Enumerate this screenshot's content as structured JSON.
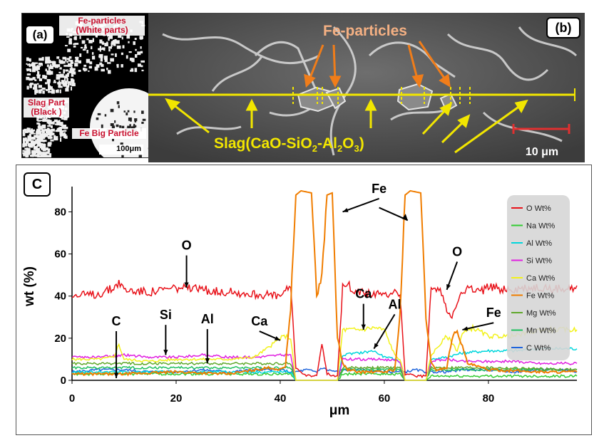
{
  "panel_a": {
    "tag": "(a)",
    "fe_particles_title": "Fe-particles",
    "fe_particles_sub": "(White parts)",
    "slag_title": "Slag Part",
    "slag_sub": "(Black )",
    "fe_big": "Fe Big Particle",
    "scale": "100μm"
  },
  "panel_b": {
    "tag": "(b)",
    "fe_particles": "Fe-particles",
    "slag_label": "Slag(CaO-SiO",
    "slag_sub2": "2",
    "slag_mid": "-Al",
    "slag_sub3a": "2",
    "slag_mid2": "O",
    "slag_sub3b": "3",
    "slag_end": ")",
    "scale": "10 μm"
  },
  "panel_c": {
    "tag": "C"
  },
  "chart_data": {
    "type": "line",
    "xlabel": "μm",
    "ylabel": "wt (%)",
    "xlim": [
      0,
      97
    ],
    "ylim": [
      0,
      92
    ],
    "xticks": [
      0,
      20,
      40,
      60,
      80
    ],
    "yticks": [
      0,
      20,
      40,
      60,
      80
    ],
    "legend_position": "right",
    "colors": {
      "O": "#e8121a",
      "Na": "#33cc33",
      "Al": "#00d6dc",
      "Si": "#e020e0",
      "Ca": "#f2f21a",
      "Fe": "#f07d00",
      "Mg": "#5fa82a",
      "Mn": "#20c060",
      "C": "#1e64dc"
    },
    "series": [
      {
        "name": "O Wt%",
        "x": [
          0,
          5,
          8,
          9,
          10,
          15,
          20,
          25,
          30,
          35,
          40,
          41,
          42,
          43,
          45,
          47,
          48,
          49,
          51,
          52,
          53,
          55,
          58,
          60,
          62,
          63,
          64,
          66,
          68,
          69,
          70,
          71,
          72,
          73,
          74,
          76,
          78,
          80,
          85,
          90,
          95,
          97
        ],
        "y": [
          40,
          41,
          44,
          47,
          43,
          42,
          44,
          43,
          42,
          41,
          40,
          42,
          45,
          6,
          2,
          2,
          18,
          3,
          2,
          44,
          45,
          42,
          41,
          40,
          43,
          41,
          3,
          2,
          2,
          44,
          43,
          42,
          33,
          31,
          38,
          44,
          42,
          44,
          43,
          44,
          43,
          45
        ]
      },
      {
        "name": "Na Wt%",
        "x": [
          0,
          20,
          40,
          42,
          43,
          51,
          52,
          63,
          64,
          68,
          69,
          97
        ],
        "y": [
          3,
          3,
          3,
          3,
          0,
          0,
          3,
          3,
          0,
          0,
          2,
          2
        ]
      },
      {
        "name": "Al Wt%",
        "x": [
          0,
          10,
          20,
          30,
          40,
          42,
          43,
          51,
          52,
          55,
          58,
          60,
          62,
          63,
          64,
          68,
          69,
          72,
          75,
          80,
          85,
          90,
          95,
          97
        ],
        "y": [
          4,
          4,
          4,
          4,
          4,
          4,
          0,
          0,
          12,
          13,
          14,
          11,
          10,
          9,
          0,
          0,
          10,
          11,
          13,
          14,
          14,
          15,
          15,
          15
        ]
      },
      {
        "name": "Si Wt%",
        "x": [
          0,
          5,
          10,
          15,
          20,
          25,
          30,
          35,
          40,
          42,
          43,
          51,
          52,
          55,
          60,
          63,
          64,
          68,
          69,
          72,
          75,
          80,
          85,
          90,
          95,
          97
        ],
        "y": [
          11,
          11,
          12,
          11,
          11,
          12,
          11,
          11,
          12,
          12,
          0,
          0,
          10,
          10,
          10,
          9,
          0,
          0,
          9,
          10,
          9,
          9,
          9,
          8,
          8,
          8
        ]
      },
      {
        "name": "Ca Wt%",
        "x": [
          0,
          5,
          8,
          9,
          10,
          15,
          20,
          25,
          30,
          35,
          38,
          40,
          41,
          42,
          43,
          51,
          52,
          55,
          58,
          60,
          62,
          63,
          64,
          68,
          69,
          71,
          72,
          73,
          74,
          75,
          77,
          80,
          85,
          90,
          95,
          97
        ],
        "y": [
          10,
          10,
          11,
          17,
          10,
          9,
          10,
          10,
          10,
          11,
          16,
          20,
          21,
          20,
          0,
          0,
          24,
          24,
          25,
          24,
          12,
          10,
          0,
          0,
          12,
          18,
          21,
          18,
          14,
          22,
          25,
          21,
          21,
          24,
          24,
          24
        ]
      },
      {
        "name": "Fe Wt%",
        "x": [
          0,
          10,
          20,
          30,
          38,
          40,
          41,
          42,
          43,
          44,
          46,
          47,
          48,
          49,
          50,
          51,
          52,
          53,
          55,
          60,
          62,
          63,
          64,
          65,
          67,
          68,
          69,
          70,
          72,
          73,
          74,
          76,
          80,
          90,
          97
        ],
        "y": [
          3,
          3,
          4,
          3,
          6,
          5,
          7,
          35,
          88,
          90,
          89,
          40,
          50,
          88,
          89,
          20,
          8,
          5,
          4,
          4,
          5,
          30,
          88,
          90,
          89,
          30,
          8,
          5,
          6,
          20,
          24,
          8,
          5,
          4,
          4
        ]
      },
      {
        "name": "Mg Wt%",
        "x": [
          0,
          20,
          40,
          42,
          43,
          51,
          52,
          60,
          63,
          64,
          68,
          69,
          80,
          97
        ],
        "y": [
          8,
          8,
          8,
          8,
          0,
          0,
          6,
          6,
          6,
          0,
          0,
          6,
          6,
          5
        ]
      },
      {
        "name": "Mn Wt%",
        "x": [
          0,
          20,
          40,
          42,
          43,
          51,
          52,
          63,
          64,
          68,
          69,
          80,
          97
        ],
        "y": [
          6,
          6,
          6,
          6,
          0,
          0,
          5,
          5,
          0,
          0,
          5,
          5,
          5
        ]
      },
      {
        "name": "C Wt%",
        "x": [
          0,
          5,
          10,
          15,
          20,
          25,
          30,
          35,
          40,
          42,
          43,
          45,
          47,
          48,
          49,
          51,
          52,
          55,
          60,
          63,
          64,
          66,
          68,
          69,
          72,
          75,
          80,
          85,
          90,
          95,
          97
        ],
        "y": [
          4,
          5,
          5,
          4,
          4,
          5,
          4,
          5,
          5,
          4,
          4,
          5,
          4,
          6,
          5,
          4,
          5,
          5,
          4,
          4,
          4,
          5,
          4,
          4,
          4,
          5,
          5,
          4,
          5,
          5,
          4
        ]
      }
    ],
    "annotations": [
      "O",
      "C",
      "Si",
      "Al",
      "Ca",
      "Fe",
      "Ca",
      "Al",
      "O",
      "Fe"
    ]
  }
}
